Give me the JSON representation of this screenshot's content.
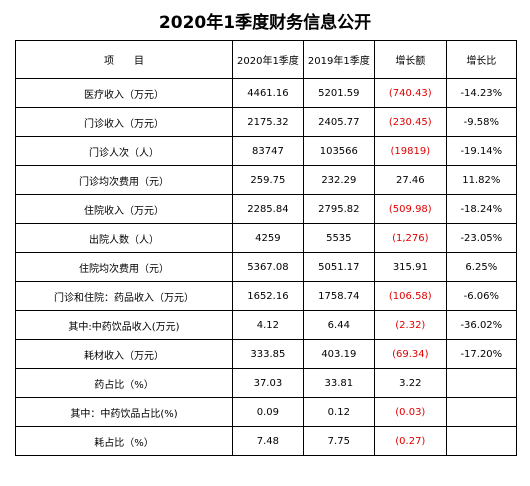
{
  "title": "2020年1季度财务信息公开",
  "table": {
    "header": [
      "项　　目",
      "2020年1季度",
      "2019年1季度",
      "增长额",
      "增长比"
    ],
    "rows": [
      [
        "医疗收入（万元）",
        "4461.16",
        "5201.59",
        "(740.43)",
        "-14.23%"
      ],
      [
        "门诊收入（万元）",
        "2175.32",
        "2405.77",
        "(230.45)",
        "-9.58%"
      ],
      [
        "门诊人次（人）",
        "83747",
        "103566",
        "(19819)",
        "-19.14%"
      ],
      [
        "门诊均次费用（元）",
        "259.75",
        "232.29",
        "27.46",
        "11.82%"
      ],
      [
        "住院收入（万元）",
        "2285.84",
        "2795.82",
        "(509.98)",
        "-18.24%"
      ],
      [
        "出院人数（人）",
        "4259",
        "5535",
        "(1,276)",
        "-23.05%"
      ],
      [
        "住院均次费用（元）",
        "5367.08",
        "5051.17",
        "315.91",
        "6.25%"
      ],
      [
        "门诊和住院：药品收入（万元）",
        "1652.16",
        "1758.74",
        "(106.58)",
        "-6.06%"
      ],
      [
        "其中:中药饮品收入(万元)",
        "4.12",
        "6.44",
        "(2.32)",
        "-36.02%"
      ],
      [
        "耗材收入（万元）",
        "333.85",
        "403.19",
        "(69.34)",
        "-17.20%"
      ],
      [
        "药占比（%）",
        "37.03",
        "33.81",
        "3.22"
      ],
      [
        "其中：中药饮品占比(%)",
        "0.09",
        "0.12",
        "(0.03)"
      ],
      [
        "耗占比（%）",
        "7.48",
        "7.75",
        "(0.27)"
      ]
    ]
  }
}
